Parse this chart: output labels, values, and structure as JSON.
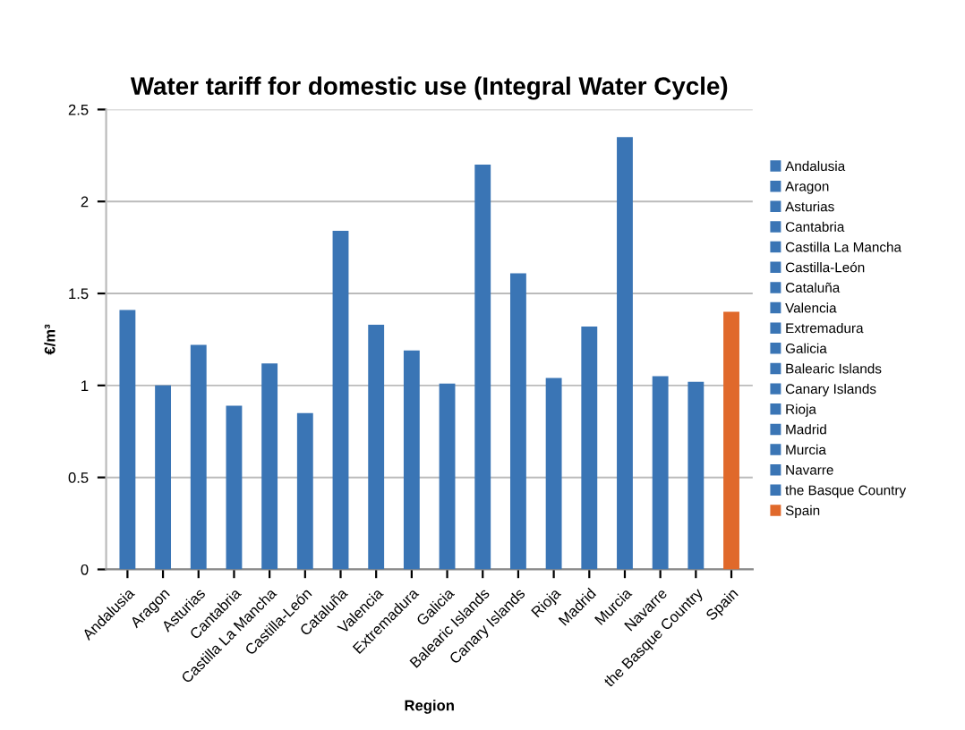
{
  "chart_data": {
    "type": "bar",
    "title": "Water tariff for domestic use (Integral Water Cycle)",
    "xlabel": "Region",
    "ylabel": "€/m³",
    "stacked": true,
    "categories": [
      "Andalusia",
      "Aragon",
      "Asturias",
      "Cantabria",
      "Castilla La Mancha",
      "Castilla-León",
      "Cataluña",
      "Valencia",
      "Extremadura",
      "Galicia",
      "Balearic Islands",
      "Canary Islands",
      "Rioja",
      "Madrid",
      "Murcia",
      "Navarre",
      "the Basque Country",
      "Spain"
    ],
    "series": [
      {
        "name": "Andalusia",
        "color": "#3a75b5",
        "values": [
          1.41,
          null,
          null,
          null,
          null,
          null,
          null,
          null,
          null,
          null,
          null,
          null,
          null,
          null,
          null,
          null,
          null,
          null
        ]
      },
      {
        "name": "Aragon",
        "color": "#3a75b5",
        "values": [
          null,
          1.0,
          null,
          null,
          null,
          null,
          null,
          null,
          null,
          null,
          null,
          null,
          null,
          null,
          null,
          null,
          null,
          null
        ]
      },
      {
        "name": "Asturias",
        "color": "#3a75b5",
        "values": [
          null,
          null,
          1.22,
          null,
          null,
          null,
          null,
          null,
          null,
          null,
          null,
          null,
          null,
          null,
          null,
          null,
          null,
          null
        ]
      },
      {
        "name": "Cantabria",
        "color": "#3a75b5",
        "values": [
          null,
          null,
          null,
          0.89,
          null,
          null,
          null,
          null,
          null,
          null,
          null,
          null,
          null,
          null,
          null,
          null,
          null,
          null
        ]
      },
      {
        "name": "Castilla La Mancha",
        "color": "#3a75b5",
        "values": [
          null,
          null,
          null,
          null,
          1.12,
          null,
          null,
          null,
          null,
          null,
          null,
          null,
          null,
          null,
          null,
          null,
          null,
          null
        ]
      },
      {
        "name": "Castilla-León",
        "color": "#3a75b5",
        "values": [
          null,
          null,
          null,
          null,
          null,
          0.85,
          null,
          null,
          null,
          null,
          null,
          null,
          null,
          null,
          null,
          null,
          null,
          null
        ]
      },
      {
        "name": "Cataluña",
        "color": "#3a75b5",
        "values": [
          null,
          null,
          null,
          null,
          null,
          null,
          1.84,
          null,
          null,
          null,
          null,
          null,
          null,
          null,
          null,
          null,
          null,
          null
        ]
      },
      {
        "name": "Valencia",
        "color": "#3a75b5",
        "values": [
          null,
          null,
          null,
          null,
          null,
          null,
          null,
          1.33,
          null,
          null,
          null,
          null,
          null,
          null,
          null,
          null,
          null,
          null
        ]
      },
      {
        "name": "Extremadura",
        "color": "#3a75b5",
        "values": [
          null,
          null,
          null,
          null,
          null,
          null,
          null,
          null,
          1.19,
          null,
          null,
          null,
          null,
          null,
          null,
          null,
          null,
          null
        ]
      },
      {
        "name": "Galicia",
        "color": "#3a75b5",
        "values": [
          null,
          null,
          null,
          null,
          null,
          null,
          null,
          null,
          null,
          1.01,
          null,
          null,
          null,
          null,
          null,
          null,
          null,
          null
        ]
      },
      {
        "name": "Balearic Islands",
        "color": "#3a75b5",
        "values": [
          null,
          null,
          null,
          null,
          null,
          null,
          null,
          null,
          null,
          null,
          2.2,
          null,
          null,
          null,
          null,
          null,
          null,
          null
        ]
      },
      {
        "name": "Canary Islands",
        "color": "#3a75b5",
        "values": [
          null,
          null,
          null,
          null,
          null,
          null,
          null,
          null,
          null,
          null,
          null,
          1.61,
          null,
          null,
          null,
          null,
          null,
          null
        ]
      },
      {
        "name": "Rioja",
        "color": "#3a75b5",
        "values": [
          null,
          null,
          null,
          null,
          null,
          null,
          null,
          null,
          null,
          null,
          null,
          null,
          1.04,
          null,
          null,
          null,
          null,
          null
        ]
      },
      {
        "name": "Madrid",
        "color": "#3a75b5",
        "values": [
          null,
          null,
          null,
          null,
          null,
          null,
          null,
          null,
          null,
          null,
          null,
          null,
          null,
          1.32,
          null,
          null,
          null,
          null
        ]
      },
      {
        "name": "Murcia",
        "color": "#3a75b5",
        "values": [
          null,
          null,
          null,
          null,
          null,
          null,
          null,
          null,
          null,
          null,
          null,
          null,
          null,
          null,
          2.35,
          null,
          null,
          null
        ]
      },
      {
        "name": "Navarre",
        "color": "#3a75b5",
        "values": [
          null,
          null,
          null,
          null,
          null,
          null,
          null,
          null,
          null,
          null,
          null,
          null,
          null,
          null,
          null,
          1.05,
          null,
          null
        ]
      },
      {
        "name": "the Basque Country",
        "color": "#3a75b5",
        "values": [
          null,
          null,
          null,
          null,
          null,
          null,
          null,
          null,
          null,
          null,
          null,
          null,
          null,
          null,
          null,
          null,
          1.02,
          null
        ]
      },
      {
        "name": "Spain",
        "color": "#e0692b",
        "values": [
          null,
          null,
          null,
          null,
          null,
          null,
          null,
          null,
          null,
          null,
          null,
          null,
          null,
          null,
          null,
          null,
          null,
          1.4
        ]
      }
    ],
    "ylim": [
      0,
      2.5
    ],
    "yticks": [
      0,
      0.5,
      1,
      1.5,
      2,
      2.5
    ],
    "grid": "y",
    "legend": "right"
  }
}
